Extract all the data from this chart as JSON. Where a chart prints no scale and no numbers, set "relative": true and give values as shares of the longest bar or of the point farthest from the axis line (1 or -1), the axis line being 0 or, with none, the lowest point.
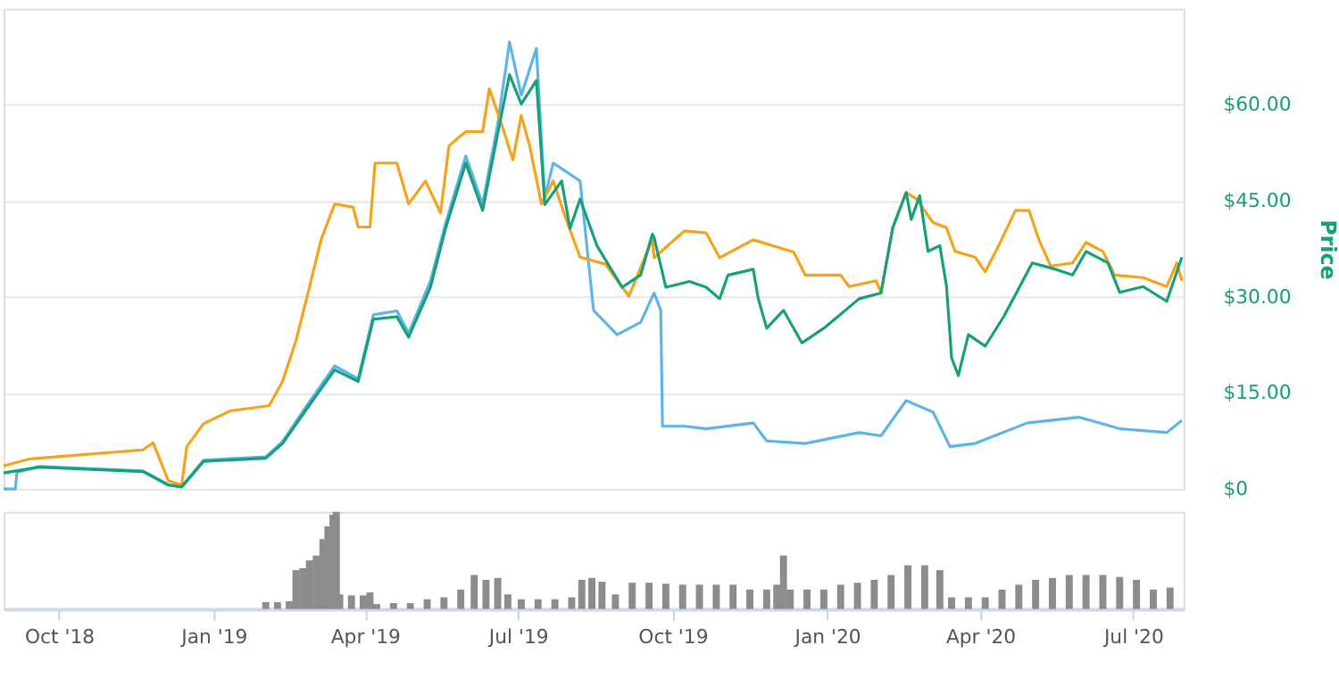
{
  "chart_data": [
    {
      "type": "line",
      "ylabel": "Price",
      "xlim": [
        "2018-08-29",
        "2020-07-31"
      ],
      "ylim": [
        0,
        75
      ],
      "yticks": [
        {
          "value": 0,
          "label": "$0"
        },
        {
          "value": 15,
          "label": "$15.00"
        },
        {
          "value": 30,
          "label": "$30.00"
        },
        {
          "value": 45,
          "label": "$45.00"
        },
        {
          "value": 60,
          "label": "$60.00"
        },
        {
          "value": 75,
          "label": null
        }
      ],
      "grid": "y",
      "tick_labels": "y",
      "marker": "none",
      "line_style": "solid",
      "series": [
        {
          "color": "#5db4e8",
          "x": [
            "2018-08-29",
            "2018-09-05",
            "2018-09-06",
            "2018-09-19",
            "2018-11-20",
            "2018-12-05",
            "2018-12-13",
            "2018-12-26",
            "2019-02-01",
            "2019-02-11",
            "2019-02-27",
            "2019-03-14",
            "2019-03-28",
            "2019-04-06",
            "2019-04-20",
            "2019-04-27",
            "2019-05-10",
            "2019-05-19",
            "2019-05-31",
            "2019-06-10",
            "2019-06-19",
            "2019-06-26",
            "2019-07-03",
            "2019-07-12",
            "2019-07-17",
            "2019-07-22",
            "2019-08-07",
            "2019-08-15",
            "2019-08-29",
            "2019-09-12",
            "2019-09-20",
            "2019-09-24",
            "2019-09-25",
            "2019-10-08",
            "2019-10-21",
            "2019-11-18",
            "2019-11-26",
            "2019-12-19",
            "2020-01-20",
            "2020-02-02",
            "2020-02-17",
            "2020-03-04",
            "2020-03-14",
            "2020-03-29",
            "2020-04-29",
            "2020-05-30",
            "2020-06-23",
            "2020-07-21",
            "2020-07-30"
          ],
          "values": [
            0,
            0,
            2.6,
            3.5,
            2.8,
            0.7,
            0.4,
            4.5,
            5.0,
            7.4,
            13.6,
            19.2,
            17.2,
            27.2,
            27.8,
            24.3,
            32.5,
            41.5,
            52.0,
            44.5,
            57.0,
            69.8,
            61.5,
            68.8,
            45.5,
            50.9,
            48.1,
            27.9,
            24.1,
            26.0,
            30.6,
            27.9,
            9.8,
            9.8,
            9.4,
            10.3,
            7.5,
            7.1,
            8.8,
            8.3,
            13.8,
            12.0,
            6.6,
            7.1,
            10.3,
            11.2,
            9.4,
            8.8,
            10.7
          ]
        },
        {
          "color": "#f7a21b",
          "x": [
            "2018-08-29",
            "2018-09-14",
            "2018-11-20",
            "2018-11-26",
            "2018-12-05",
            "2018-12-13",
            "2018-12-16",
            "2018-12-26",
            "2019-01-11",
            "2019-02-03",
            "2019-02-11",
            "2019-02-19",
            "2019-02-27",
            "2019-03-06",
            "2019-03-14",
            "2019-03-25",
            "2019-03-28",
            "2019-04-04",
            "2019-04-07",
            "2019-04-20",
            "2019-04-27",
            "2019-05-07",
            "2019-05-16",
            "2019-05-21",
            "2019-05-31",
            "2019-06-10",
            "2019-06-14",
            "2019-06-21",
            "2019-06-28",
            "2019-07-03",
            "2019-07-08",
            "2019-07-15",
            "2019-07-22",
            "2019-07-29",
            "2019-08-07",
            "2019-08-22",
            "2019-09-05",
            "2019-09-19",
            "2019-09-20",
            "2019-10-08",
            "2019-10-21",
            "2019-10-29",
            "2019-11-18",
            "2019-12-12",
            "2019-12-19",
            "2020-01-09",
            "2020-01-14",
            "2020-01-30",
            "2020-02-02",
            "2020-02-09",
            "2020-02-17",
            "2020-02-23",
            "2020-03-04",
            "2020-03-12",
            "2020-03-17",
            "2020-03-29",
            "2020-04-04",
            "2020-04-12",
            "2020-04-22",
            "2020-04-30",
            "2020-05-06",
            "2020-05-13",
            "2020-05-26",
            "2020-06-03",
            "2020-06-13",
            "2020-06-20",
            "2020-07-07",
            "2020-07-21",
            "2020-07-27",
            "2020-07-30"
          ],
          "values": [
            3.6,
            4.7,
            6.1,
            7.2,
            1.3,
            0.6,
            6.6,
            10.2,
            12.2,
            13.0,
            16.8,
            23.2,
            31.5,
            39.0,
            44.5,
            44.0,
            40.9,
            40.9,
            50.9,
            50.9,
            44.5,
            48.1,
            43.1,
            53.6,
            55.8,
            55.8,
            62.5,
            57.2,
            51.4,
            58.3,
            53.6,
            44.5,
            48.1,
            42.6,
            36.2,
            35.1,
            30.1,
            39.0,
            36.1,
            40.3,
            40.0,
            36.1,
            38.9,
            37.0,
            33.4,
            33.4,
            31.6,
            32.5,
            30.7,
            40.8,
            46.3,
            45.3,
            41.6,
            40.8,
            37.1,
            36.2,
            33.9,
            38.0,
            43.5,
            43.5,
            38.9,
            34.8,
            35.3,
            38.5,
            37.1,
            33.4,
            33.0,
            31.6,
            35.3,
            32.5
          ]
        },
        {
          "color": "#16a07a",
          "x": [
            "2018-08-29",
            "2018-09-19",
            "2018-11-20",
            "2018-12-05",
            "2018-12-13",
            "2018-12-26",
            "2019-02-01",
            "2019-02-11",
            "2019-02-27",
            "2019-03-14",
            "2019-03-28",
            "2019-04-06",
            "2019-04-20",
            "2019-04-27",
            "2019-05-10",
            "2019-05-19",
            "2019-05-31",
            "2019-06-10",
            "2019-06-19",
            "2019-06-26",
            "2019-07-03",
            "2019-07-12",
            "2019-07-17",
            "2019-07-27",
            "2019-08-01",
            "2019-08-07",
            "2019-08-17",
            "2019-09-01",
            "2019-09-12",
            "2019-09-19",
            "2019-09-20",
            "2019-09-27",
            "2019-10-11",
            "2019-10-21",
            "2019-10-29",
            "2019-11-03",
            "2019-11-18",
            "2019-11-21",
            "2019-11-26",
            "2019-12-06",
            "2019-12-17",
            "2019-12-30",
            "2020-01-20",
            "2020-02-02",
            "2020-02-09",
            "2020-02-17",
            "2020-02-20",
            "2020-02-25",
            "2020-03-01",
            "2020-03-08",
            "2020-03-12",
            "2020-03-15",
            "2020-03-19",
            "2020-03-25",
            "2020-04-04",
            "2020-04-15",
            "2020-05-02",
            "2020-05-16",
            "2020-05-26",
            "2020-06-03",
            "2020-06-16",
            "2020-06-23",
            "2020-07-07",
            "2020-07-21",
            "2020-07-30"
          ],
          "values": [
            2.5,
            3.4,
            2.7,
            0.6,
            0.3,
            4.3,
            4.8,
            7.1,
            13.1,
            18.6,
            16.8,
            26.5,
            26.9,
            23.7,
            31.5,
            40.7,
            50.9,
            43.5,
            55.5,
            64.7,
            60.1,
            63.8,
            44.4,
            48.1,
            40.7,
            45.3,
            38.0,
            31.5,
            33.4,
            39.8,
            39.3,
            31.5,
            32.4,
            31.5,
            29.7,
            33.4,
            34.3,
            29.7,
            25.1,
            27.9,
            22.8,
            25.1,
            29.7,
            30.6,
            40.8,
            46.3,
            42.1,
            45.8,
            37.1,
            38.0,
            31.6,
            20.5,
            17.7,
            24.1,
            22.3,
            26.9,
            35.3,
            34.3,
            33.4,
            37.1,
            35.3,
            30.7,
            31.6,
            29.3,
            36.2
          ]
        }
      ]
    },
    {
      "type": "bar",
      "relative": true,
      "color": "#8c8c8c",
      "xlim": [
        "2018-08-29",
        "2020-07-31"
      ],
      "xticks": [
        {
          "value": "2018-10-01",
          "label": "Oct '18"
        },
        {
          "value": "2019-01-01",
          "label": "Jan '19"
        },
        {
          "value": "2019-04-01",
          "label": "Apr '19"
        },
        {
          "value": "2019-07-01",
          "label": "Jul '19"
        },
        {
          "value": "2019-10-01",
          "label": "Oct '19"
        },
        {
          "value": "2020-01-01",
          "label": "Jan '20"
        },
        {
          "value": "2020-04-01",
          "label": "Apr '20"
        },
        {
          "value": "2020-07-01",
          "label": "Jul '20"
        }
      ],
      "tick_labels": "x",
      "x": [
        "2019-02-01",
        "2019-02-08",
        "2019-02-15",
        "2019-02-19",
        "2019-02-23",
        "2019-02-27",
        "2019-03-03",
        "2019-03-07",
        "2019-03-10",
        "2019-03-13",
        "2019-03-15",
        "2019-03-17",
        "2019-03-24",
        "2019-03-31",
        "2019-04-04",
        "2019-04-08",
        "2019-04-18",
        "2019-04-28",
        "2019-05-08",
        "2019-05-18",
        "2019-05-28",
        "2019-06-05",
        "2019-06-12",
        "2019-06-19",
        "2019-06-25",
        "2019-07-03",
        "2019-07-13",
        "2019-07-23",
        "2019-08-02",
        "2019-08-08",
        "2019-08-14",
        "2019-08-20",
        "2019-08-28",
        "2019-09-07",
        "2019-09-17",
        "2019-09-27",
        "2019-10-07",
        "2019-10-17",
        "2019-10-27",
        "2019-11-06",
        "2019-11-16",
        "2019-11-26",
        "2019-12-02",
        "2019-12-06",
        "2019-12-10",
        "2019-12-20",
        "2019-12-30",
        "2020-01-09",
        "2020-01-19",
        "2020-01-29",
        "2020-02-08",
        "2020-02-18",
        "2020-02-28",
        "2020-03-08",
        "2020-03-15",
        "2020-03-25",
        "2020-04-04",
        "2020-04-14",
        "2020-04-24",
        "2020-05-04",
        "2020-05-14",
        "2020-05-24",
        "2020-06-03",
        "2020-06-13",
        "2020-06-23",
        "2020-07-03",
        "2020-07-13",
        "2020-07-23"
      ],
      "values": [
        0.07,
        0.07,
        0.08,
        0.4,
        0.42,
        0.5,
        0.55,
        0.72,
        0.85,
        0.97,
        1.0,
        0.15,
        0.14,
        0.14,
        0.17,
        0.05,
        0.06,
        0.06,
        0.1,
        0.12,
        0.2,
        0.35,
        0.3,
        0.32,
        0.15,
        0.1,
        0.1,
        0.1,
        0.12,
        0.3,
        0.32,
        0.28,
        0.15,
        0.27,
        0.27,
        0.26,
        0.25,
        0.25,
        0.25,
        0.25,
        0.2,
        0.2,
        0.25,
        0.55,
        0.2,
        0.2,
        0.2,
        0.25,
        0.27,
        0.3,
        0.35,
        0.45,
        0.45,
        0.4,
        0.12,
        0.12,
        0.12,
        0.2,
        0.25,
        0.3,
        0.32,
        0.35,
        0.35,
        0.35,
        0.33,
        0.3,
        0.2,
        0.22
      ]
    }
  ]
}
